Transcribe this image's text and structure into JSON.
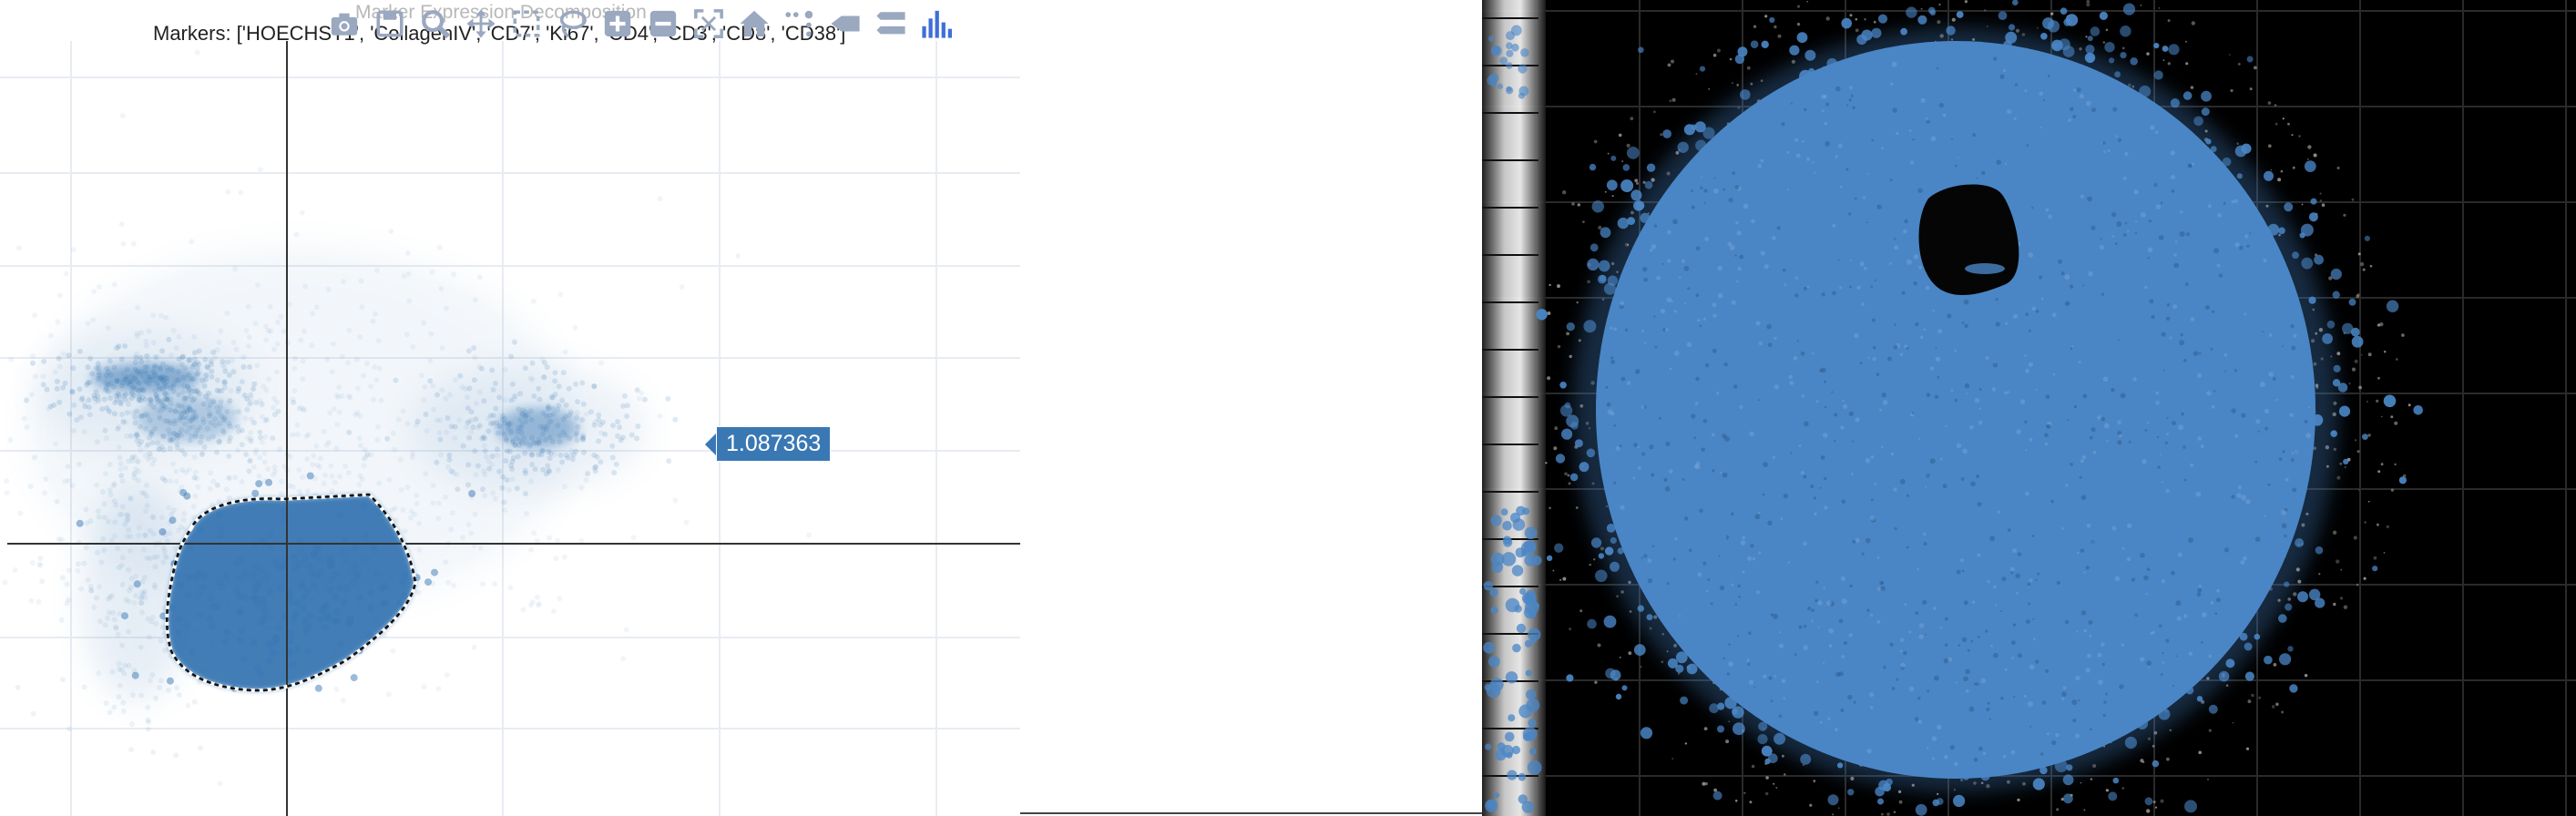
{
  "plot": {
    "title": "Marker Expression Decomposition",
    "markers_label": "Markers: ['HOECHST1', 'CollagenIV', 'CD7', 'Ki67', 'CD4', 'CD3', 'CD8', 'CD38']",
    "hover_value": "1.087363",
    "point_color": "#3a78b4",
    "modebar": [
      {
        "name": "camera-icon",
        "title": "Download plot as a png"
      },
      {
        "name": "save-icon",
        "title": "Save"
      },
      {
        "name": "zoom-icon",
        "title": "Zoom"
      },
      {
        "name": "pan-icon",
        "title": "Pan"
      },
      {
        "name": "box-select-icon",
        "title": "Box Select"
      },
      {
        "name": "lasso-select-icon",
        "title": "Lasso Select"
      },
      {
        "name": "zoom-in-icon",
        "title": "Zoom in"
      },
      {
        "name": "zoom-out-icon",
        "title": "Zoom out"
      },
      {
        "name": "autoscale-icon",
        "title": "Autoscale"
      },
      {
        "name": "reset-axes-icon",
        "title": "Reset axes"
      },
      {
        "name": "toggle-spike-lines-icon",
        "title": "Toggle Spike Lines"
      },
      {
        "name": "show-closest-icon",
        "title": "Show closest data on hover"
      },
      {
        "name": "compare-data-icon",
        "title": "Compare data on hover"
      },
      {
        "name": "plotly-logo-icon",
        "title": "Produced with Plotly"
      }
    ]
  },
  "image_view": {
    "overlay_color": "#4a86c6",
    "background": "#000000"
  }
}
